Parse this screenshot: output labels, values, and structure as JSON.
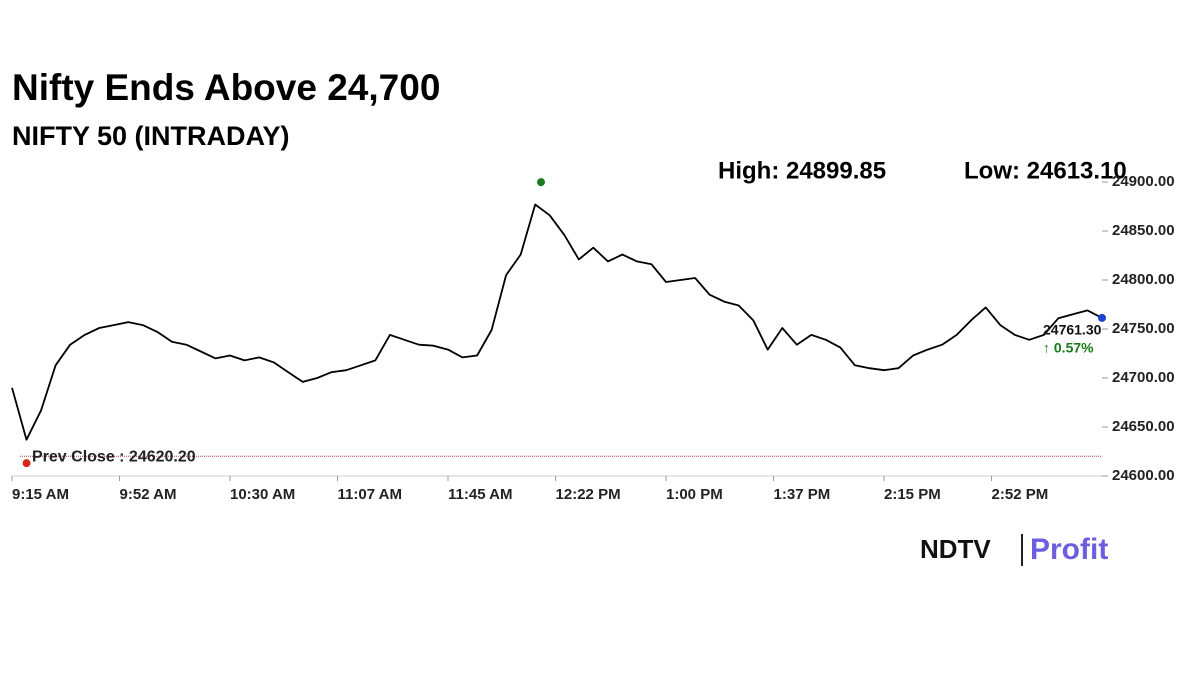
{
  "chart_data": {
    "type": "line",
    "title": "Nifty Ends Above 24,700",
    "subtitle": "NIFTY 50 (INTRADAY)",
    "color": "#000000",
    "x": [
      "9:15 AM",
      "9:20 AM",
      "9:25 AM",
      "9:30 AM",
      "9:35 AM",
      "9:40 AM",
      "9:45 AM",
      "9:50 AM",
      "9:55 AM",
      "10:00 AM",
      "10:05 AM",
      "10:10 AM",
      "10:15 AM",
      "10:20 AM",
      "10:25 AM",
      "10:30 AM",
      "10:35 AM",
      "10:40 AM",
      "10:45 AM",
      "10:50 AM",
      "10:55 AM",
      "11:00 AM",
      "11:05 AM",
      "11:10 AM",
      "11:15 AM",
      "11:20 AM",
      "11:25 AM",
      "11:30 AM",
      "11:35 AM",
      "11:40 AM",
      "11:45 AM",
      "11:50 AM",
      "11:55 AM",
      "12:00 PM",
      "12:05 PM",
      "12:10 PM",
      "12:15 PM",
      "12:20 PM",
      "12:25 PM",
      "12:30 PM",
      "12:35 PM",
      "12:40 PM",
      "12:45 PM",
      "12:50 PM",
      "12:55 PM",
      "1:00 PM",
      "1:05 PM",
      "1:10 PM",
      "1:15 PM",
      "1:20 PM",
      "1:25 PM",
      "1:30 PM",
      "1:35 PM",
      "1:40 PM",
      "1:45 PM",
      "1:50 PM",
      "1:55 PM",
      "2:00 PM",
      "2:05 PM",
      "2:10 PM",
      "2:15 PM",
      "2:20 PM",
      "2:25 PM",
      "2:30 PM",
      "2:35 PM",
      "2:40 PM",
      "2:45 PM",
      "2:50 PM",
      "2:55 PM",
      "3:00 PM",
      "3:05 PM",
      "3:10 PM",
      "3:15 PM",
      "3:20 PM",
      "3:25 PM",
      "3:30 PM"
    ],
    "values": [
      24690,
      24637,
      24667,
      24713,
      24734,
      24744,
      24751,
      24754,
      24757,
      24754,
      24747,
      24737,
      24734,
      24727,
      24720,
      24723,
      24718,
      24721,
      24716,
      24706,
      24696,
      24700,
      24706,
      24708,
      24713,
      24718,
      24744,
      24739,
      24734,
      24733,
      24729,
      24721,
      24723,
      24749,
      24805,
      24826,
      24877,
      24866,
      24846,
      24821,
      24833,
      24819,
      24826,
      24819,
      24816,
      24798,
      24800,
      24802,
      24785,
      24778,
      24774,
      24759,
      24729,
      24751,
      24734,
      24744,
      24739,
      24731,
      24713,
      24710,
      24708,
      24710,
      24723,
      24729,
      24734,
      24744,
      24759,
      24772,
      24754,
      24744,
      24739,
      24744,
      24761,
      24765,
      24769,
      24761.3
    ],
    "xlim": [
      "9:15 AM",
      "3:30 PM"
    ],
    "xticks": [
      "9:15 AM",
      "9:52 AM",
      "10:30 AM",
      "11:07 AM",
      "11:45 AM",
      "12:22 PM",
      "1:00 PM",
      "1:37 PM",
      "2:15 PM",
      "2:52 PM"
    ],
    "ylim": [
      24600,
      24900
    ],
    "yticks": [
      {
        "value": 24600,
        "label": "24600.00"
      },
      {
        "value": 24650,
        "label": "24650.00"
      },
      {
        "value": 24700,
        "label": "24700.00"
      },
      {
        "value": 24750,
        "label": "24750.00"
      },
      {
        "value": 24800,
        "label": "24800.00"
      },
      {
        "value": 24850,
        "label": "24850.00"
      },
      {
        "value": 24900,
        "label": "24900.00"
      }
    ],
    "high": {
      "label": "High: 24899.85",
      "value": 24899.85,
      "x": "12:17 PM",
      "color": "#1a7a1a"
    },
    "low": {
      "label": "Low: 24613.10",
      "value": 24613.1,
      "x": "9:20 AM",
      "color": "#d9261c"
    },
    "prev_close": {
      "label": "Prev Close : 24620.20",
      "value": 24620.2,
      "color": "#b0413e"
    },
    "last": {
      "label": "24761.30",
      "value": 24761.3,
      "change_label": "↑ 0.57%",
      "change": 0.57,
      "color": "#1f3fd1",
      "change_color": "#1a7a1a"
    }
  },
  "logo": {
    "brand": "NDTV",
    "product": "Profit"
  }
}
